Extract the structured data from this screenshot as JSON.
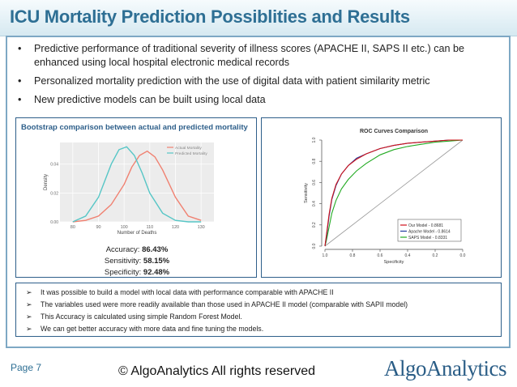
{
  "title": "ICU Mortality Prediction Possiblities and Results",
  "bullets": [
    "Predictive performance of traditional severity of illness scores (APACHE II, SAPS II etc.) can be enhanced using local hospital electronic medical records",
    "Personalized mortality prediction with the use of digital data with patient similarity metric",
    "New predictive models can be built using local data"
  ],
  "bullet_glyph": "•",
  "left_panel": {
    "title": "Bootstrap comparison between actual and predicted mortality",
    "stats": {
      "accuracy_label": "Accuracy:",
      "accuracy_value": "86.43%",
      "sensitivity_label": "Sensitivity:",
      "sensitivity_value": "58.15%",
      "specificity_label": "Specificity:",
      "specificity_value": "92.48%"
    }
  },
  "findings": [
    "It was possible to build a model with local data with performance comparable with APACHE II",
    "The variables used were more readily available than those used in APACHE II model (comparable with  SAPII model)",
    "This Accuracy is calculated using simple Random Forest Model.",
    "We can get better accuracy with more data and fine tuning the models."
  ],
  "findings_glyph": "➢",
  "footer": {
    "page": "Page  7",
    "copyright": "© AlgoAnalytics All rights reserved",
    "logo": "AlgoAnalytics"
  },
  "colors": {
    "title": "#2e6f94",
    "panel_border": "#2e5f8a",
    "actual": "#f08070",
    "predicted": "#56c6c6",
    "our_model": "#d0121a",
    "apache": "#1f3b9e",
    "saps": "#22aa22",
    "logo": "#2a5d86"
  },
  "chart_data": [
    {
      "type": "line",
      "title": "",
      "xlabel": "Number of Deaths",
      "ylabel": "Density",
      "x_ticks": [
        "80",
        "90",
        "100",
        "110",
        "120",
        "130"
      ],
      "y_ticks": [
        "0.00",
        "0.02",
        "0.04"
      ],
      "xlim": [
        75,
        135
      ],
      "ylim": [
        0,
        0.055
      ],
      "legend_position": "top-right",
      "series": [
        {
          "name": "Actual Mortality",
          "color": "#f08070",
          "x": [
            80,
            85,
            90,
            95,
            100,
            103,
            106,
            109,
            112,
            115,
            120,
            125,
            130
          ],
          "y": [
            0.0,
            0.001,
            0.004,
            0.012,
            0.026,
            0.038,
            0.046,
            0.049,
            0.045,
            0.036,
            0.017,
            0.004,
            0.001
          ]
        },
        {
          "name": "Predicted Mortality",
          "color": "#56c6c6",
          "x": [
            80,
            85,
            90,
            95,
            98,
            101,
            104,
            107,
            110,
            115,
            120,
            125,
            130
          ],
          "y": [
            0.0,
            0.004,
            0.017,
            0.04,
            0.05,
            0.052,
            0.046,
            0.034,
            0.02,
            0.006,
            0.001,
            0.0,
            0.0
          ]
        }
      ]
    },
    {
      "type": "line",
      "title": "ROC Curves Comparison",
      "xlabel": "Specificity",
      "ylabel": "Sensitivity",
      "x_ticks": [
        "1.0",
        "0.8",
        "0.6",
        "0.4",
        "0.2",
        "0.0"
      ],
      "y_ticks": [
        "0.0",
        "0.2",
        "0.4",
        "0.6",
        "0.8",
        "1.0"
      ],
      "xlim": [
        1.0,
        0.0
      ],
      "ylim": [
        0,
        1
      ],
      "legend_position": "bottom-right",
      "series": [
        {
          "name": "Our Model - 0.8681",
          "color": "#d0121a",
          "x": [
            1.0,
            0.99,
            0.97,
            0.95,
            0.92,
            0.88,
            0.83,
            0.77,
            0.7,
            0.6,
            0.5,
            0.4,
            0.3,
            0.2,
            0.1,
            0.0
          ],
          "y": [
            0.0,
            0.1,
            0.3,
            0.45,
            0.58,
            0.68,
            0.76,
            0.82,
            0.87,
            0.92,
            0.95,
            0.97,
            0.98,
            0.99,
            1.0,
            1.0
          ]
        },
        {
          "name": "Apache Model - 0.8614",
          "color": "#1f3b9e",
          "x": [
            1.0,
            0.99,
            0.97,
            0.95,
            0.92,
            0.88,
            0.83,
            0.77,
            0.7,
            0.6,
            0.5,
            0.4,
            0.3,
            0.2,
            0.1,
            0.0
          ],
          "y": [
            0.0,
            0.08,
            0.28,
            0.44,
            0.57,
            0.68,
            0.76,
            0.83,
            0.87,
            0.92,
            0.95,
            0.97,
            0.98,
            0.99,
            1.0,
            1.0
          ]
        },
        {
          "name": "SAPS Model - 0.8331",
          "color": "#22aa22",
          "x": [
            1.0,
            0.99,
            0.97,
            0.95,
            0.92,
            0.88,
            0.83,
            0.77,
            0.7,
            0.6,
            0.5,
            0.4,
            0.3,
            0.2,
            0.1,
            0.0
          ],
          "y": [
            0.0,
            0.05,
            0.18,
            0.31,
            0.43,
            0.54,
            0.63,
            0.71,
            0.78,
            0.86,
            0.91,
            0.94,
            0.96,
            0.98,
            0.99,
            1.0
          ]
        }
      ]
    }
  ]
}
